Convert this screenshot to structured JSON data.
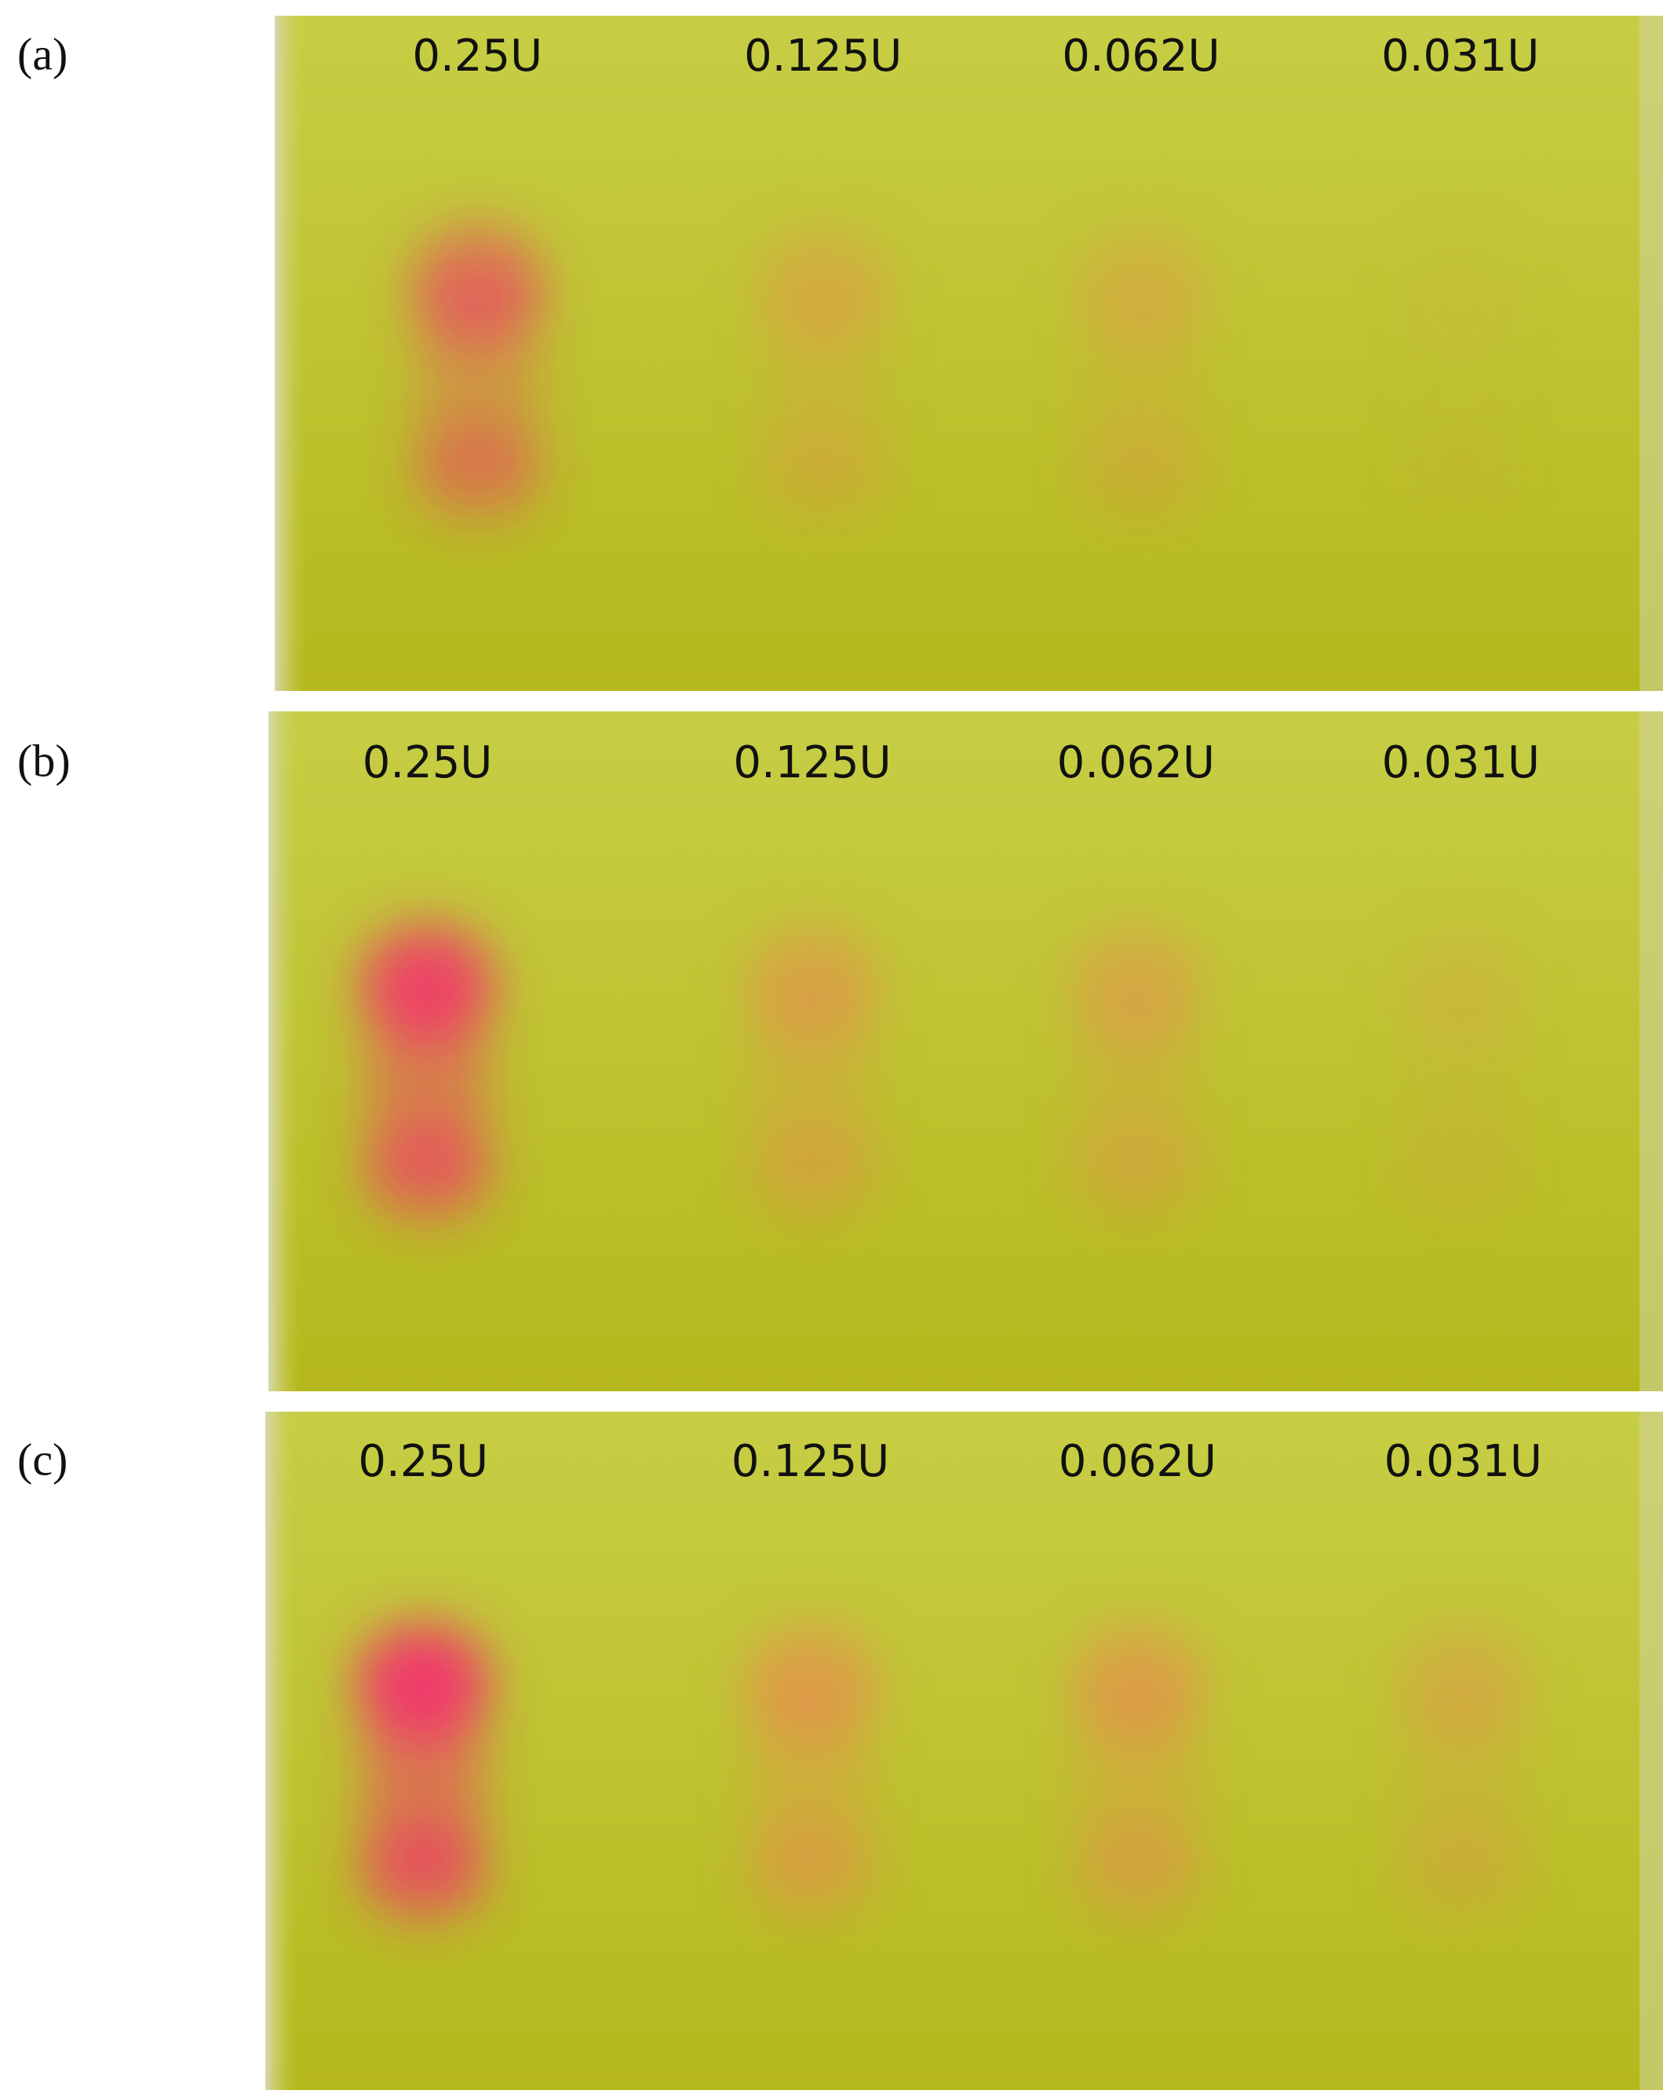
{
  "panels": [
    {
      "label": "(a)",
      "lanes": [
        "0.25U",
        "0.125U",
        "0.062U",
        "0.031U"
      ]
    },
    {
      "label": "(b)",
      "lanes": [
        "0.25U",
        "0.125U",
        "0.062U",
        "0.031U"
      ]
    },
    {
      "label": "(c)",
      "lanes": [
        "0.25U",
        "0.125U",
        "0.062U",
        "0.031U"
      ]
    }
  ]
}
